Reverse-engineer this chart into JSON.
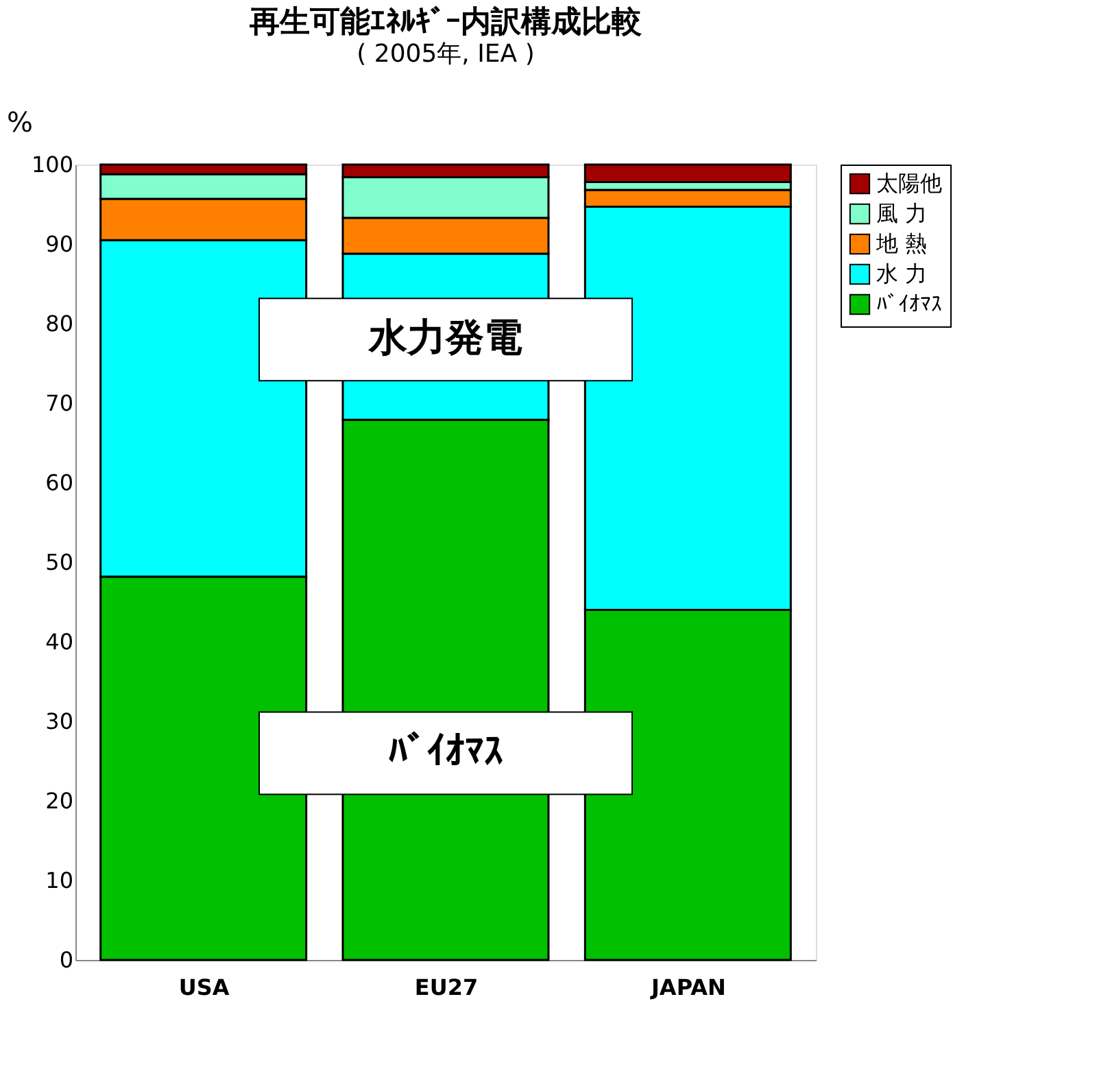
{
  "chart_data": {
    "type": "bar",
    "stacked": true,
    "title": "再生可能ｴﾈﾙｷﾞｰ内訳構成比較",
    "subtitle": "( 2005年, IEA )",
    "ylabel": "%",
    "categories": [
      "USA",
      "EU27",
      "JAPAN"
    ],
    "series": [
      {
        "name": "ﾊﾞｲｵﾏｽ",
        "color": "#00c000",
        "values": [
          48.2,
          67.9,
          44.0
        ]
      },
      {
        "name": "水 力",
        "color": "#00ffff",
        "values": [
          42.3,
          20.9,
          50.7
        ]
      },
      {
        "name": "地 熱",
        "color": "#ff8000",
        "values": [
          5.2,
          4.5,
          2.1
        ]
      },
      {
        "name": "風 力",
        "color": "#80ffcc",
        "values": [
          3.1,
          5.1,
          1.0
        ]
      },
      {
        "name": "太陽他",
        "color": "#a00000",
        "values": [
          1.2,
          1.6,
          2.2
        ]
      }
    ],
    "ylim": [
      0,
      100
    ],
    "yticks": [
      0,
      10,
      20,
      30,
      40,
      50,
      60,
      70,
      80,
      90,
      100
    ],
    "legend": "right",
    "annotations": [
      "水力発電",
      "ﾊﾞｲｵﾏｽ"
    ]
  }
}
